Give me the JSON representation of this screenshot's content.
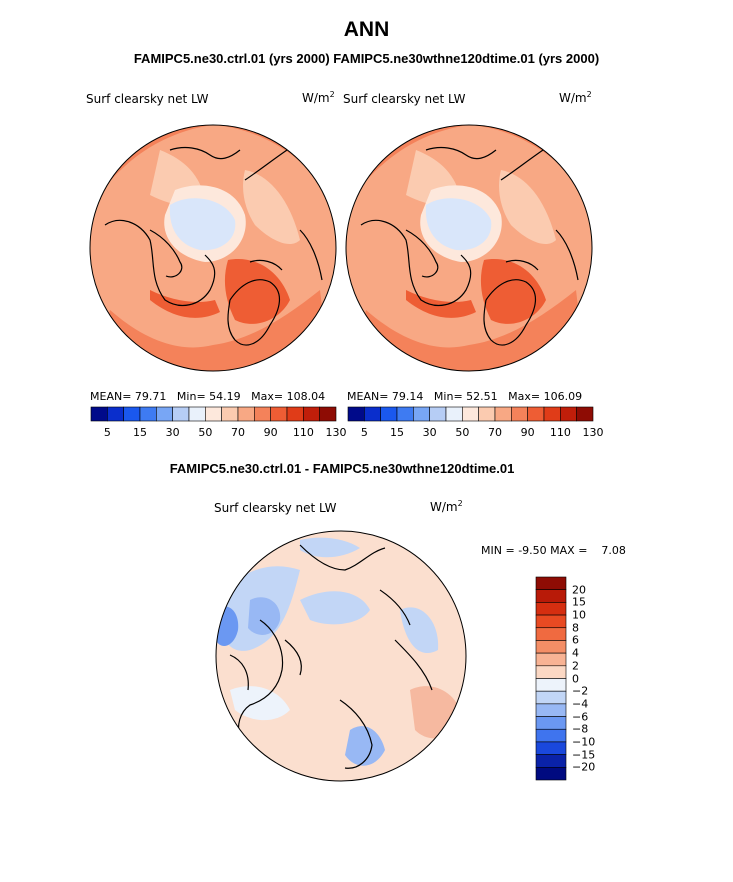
{
  "header": {
    "title": "ANN",
    "runs_line": "FAMIPC5.ne30.ctrl.01 (yrs 2000)  FAMIPC5.ne30wthne120dtime.01 (yrs 2000)"
  },
  "panel_left": {
    "variable": "Surf clearsky net LW",
    "units_base": "W/m",
    "units_exp": "2",
    "mean_label": "MEAN=",
    "mean": "79.71",
    "min_label": "Min=",
    "min": "54.19",
    "max_label": "Max=",
    "max": "108.04"
  },
  "panel_right": {
    "variable": "Surf clearsky net LW",
    "units_base": "W/m",
    "units_exp": "2",
    "mean_label": "MEAN=",
    "mean": "79.14",
    "min_label": "Min=",
    "min": "52.51",
    "max_label": "Max=",
    "max": "106.09"
  },
  "diff_panel": {
    "title": "FAMIPC5.ne30.ctrl.01 - FAMIPC5.ne30wthne120dtime.01",
    "variable": "Surf clearsky net LW",
    "units_base": "W/m",
    "units_exp": "2",
    "min_label": "MIN =",
    "min": "-9.50",
    "max_label": "MAX =",
    "max": "7.08"
  },
  "chart_data": [
    {
      "type": "heatmap",
      "projection": "north-polar-stereographic",
      "title": "Surf clearsky net LW",
      "units": "W/m2",
      "mean": 79.71,
      "min": 54.19,
      "max": 108.04,
      "colorbar": {
        "colors": [
          "#000a8a",
          "#0a2ecc",
          "#1a58ee",
          "#3e7bf2",
          "#78a6f5",
          "#b6cdf5",
          "#e9f1fb",
          "#fde8dc",
          "#fbcbb0",
          "#f8a884",
          "#f4825a",
          "#ee5d34",
          "#e03c18",
          "#c01e0a",
          "#8e0c04"
        ],
        "tick_labels": [
          "5",
          "15",
          "30",
          "50",
          "70",
          "90",
          "110",
          "130"
        ]
      }
    },
    {
      "type": "heatmap",
      "projection": "north-polar-stereographic",
      "title": "Surf clearsky net LW",
      "units": "W/m2",
      "mean": 79.14,
      "min": 52.51,
      "max": 106.09,
      "colorbar": {
        "colors": [
          "#000a8a",
          "#0a2ecc",
          "#1a58ee",
          "#3e7bf2",
          "#78a6f5",
          "#b6cdf5",
          "#e9f1fb",
          "#fde8dc",
          "#fbcbb0",
          "#f8a884",
          "#f4825a",
          "#ee5d34",
          "#e03c18",
          "#c01e0a",
          "#8e0c04"
        ],
        "tick_labels": [
          "5",
          "15",
          "30",
          "50",
          "70",
          "90",
          "110",
          "130"
        ]
      }
    },
    {
      "type": "heatmap",
      "projection": "north-polar-stereographic",
      "title": "FAMIPC5.ne30.ctrl.01 - FAMIPC5.ne30wthne120dtime.01",
      "units": "W/m2",
      "min": -9.5,
      "max": 7.08,
      "colorbar": {
        "orientation": "vertical",
        "levels": [
          "20",
          "15",
          "10",
          "8",
          "6",
          "4",
          "2",
          "0",
          "−2",
          "−4",
          "−6",
          "−8",
          "−10",
          "−15",
          "−20"
        ],
        "colors": [
          "#8e0c04",
          "#b81a08",
          "#d52e10",
          "#e84a22",
          "#f06a40",
          "#f48e66",
          "#f8b394",
          "#fbd8c4",
          "#edf3fb",
          "#c2d6f6",
          "#98b8f4",
          "#6b98f2",
          "#3f74ee",
          "#1a48dc",
          "#0a22a8",
          "#000a80"
        ]
      }
    }
  ]
}
